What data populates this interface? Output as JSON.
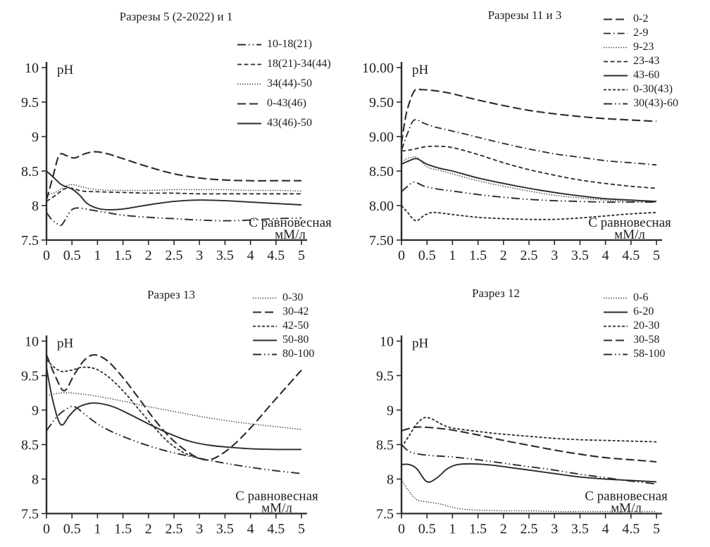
{
  "figure": {
    "background": "#ffffff",
    "ink_color": "#2b2b2b"
  },
  "chart_data": [
    {
      "type": "line",
      "title": "Разрезы 5 (2-2022) и 1",
      "ylabel": "pH",
      "xlabel_lines": [
        "С равновесная",
        "мМ/л"
      ],
      "xlim": [
        0,
        5
      ],
      "ylim": [
        7.5,
        10
      ],
      "xticks": [
        "0",
        "0.5",
        "1",
        "1.5",
        "2",
        "2.5",
        "3",
        "3.5",
        "4",
        "4.5",
        "5"
      ],
      "yticks": [
        "10",
        "9.5",
        "9",
        "8.5",
        "8",
        "7.5"
      ],
      "grid": false,
      "legend_position": "top-right",
      "series": [
        {
          "name": "10-18(21)",
          "style": "dashdotdot",
          "x": [
            0,
            0.1,
            0.2,
            0.3,
            0.45,
            0.55,
            0.7,
            0.85,
            1,
            1.25,
            1.5,
            2,
            2.5,
            3,
            3.5,
            4,
            4.5,
            5
          ],
          "y": [
            7.9,
            7.8,
            7.74,
            7.72,
            7.9,
            7.96,
            7.96,
            7.94,
            7.92,
            7.89,
            7.86,
            7.83,
            7.81,
            7.79,
            7.78,
            7.79,
            7.81,
            7.82
          ]
        },
        {
          "name": "18(21)-34(44)",
          "style": "dash",
          "x": [
            0,
            0.2,
            0.35,
            0.5,
            0.7,
            1,
            1.5,
            2,
            2.5,
            3,
            3.5,
            4,
            4.5,
            5
          ],
          "y": [
            8.06,
            8.16,
            8.24,
            8.25,
            8.21,
            8.2,
            8.19,
            8.18,
            8.18,
            8.17,
            8.17,
            8.17,
            8.17,
            8.17
          ]
        },
        {
          "name": "34(44)-50",
          "style": "dotted",
          "x": [
            0,
            0.2,
            0.4,
            0.55,
            0.75,
            1,
            1.5,
            2,
            2.5,
            3,
            3.5,
            4,
            4.5,
            5
          ],
          "y": [
            8.15,
            8.2,
            8.29,
            8.3,
            8.26,
            8.23,
            8.22,
            8.22,
            8.23,
            8.23,
            8.23,
            8.22,
            8.22,
            8.21
          ]
        },
        {
          "name": "0-43(46)",
          "style": "longdash",
          "x": [
            0,
            0.12,
            0.25,
            0.4,
            0.55,
            0.75,
            0.95,
            1.2,
            1.5,
            2,
            2.5,
            3,
            3.5,
            4,
            4.5,
            5
          ],
          "y": [
            8.08,
            8.4,
            8.73,
            8.72,
            8.69,
            8.75,
            8.78,
            8.75,
            8.68,
            8.56,
            8.46,
            8.4,
            8.37,
            8.36,
            8.36,
            8.36
          ]
        },
        {
          "name": "43(46)-50",
          "style": "solid",
          "x": [
            0,
            0.15,
            0.3,
            0.5,
            0.65,
            0.8,
            1,
            1.2,
            1.5,
            2,
            2.5,
            3,
            3.5,
            4,
            4.5,
            5
          ],
          "y": [
            8.5,
            8.4,
            8.3,
            8.24,
            8.15,
            8.03,
            7.96,
            7.94,
            7.95,
            8.01,
            8.06,
            8.08,
            8.07,
            8.05,
            8.03,
            8.01
          ]
        }
      ]
    },
    {
      "type": "line",
      "title": "Разрезы 11 и 3",
      "ylabel": "pH",
      "xlabel_lines": [
        "С равновесная",
        "мМ/л"
      ],
      "xlim": [
        0,
        5
      ],
      "ylim": [
        7.5,
        10
      ],
      "xticks": [
        "0",
        "0.5",
        "1",
        "1.5",
        "2",
        "2.5",
        "3",
        "3.5",
        "4",
        "4.5",
        "5"
      ],
      "yticks": [
        "10.00",
        "9.50",
        "9.00",
        "8.50",
        "8.00",
        "7.50"
      ],
      "grid": false,
      "legend_position": "top-right",
      "series": [
        {
          "name": "0-2",
          "style": "longdash",
          "x": [
            0,
            0.1,
            0.25,
            0.4,
            0.6,
            0.8,
            1,
            1.5,
            2,
            2.5,
            3,
            3.5,
            4,
            4.5,
            5
          ],
          "y": [
            8.9,
            9.35,
            9.66,
            9.68,
            9.67,
            9.65,
            9.62,
            9.53,
            9.45,
            9.38,
            9.33,
            9.29,
            9.26,
            9.24,
            9.22
          ]
        },
        {
          "name": "2-9",
          "style": "dashdot",
          "x": [
            0,
            0.12,
            0.25,
            0.45,
            0.65,
            1,
            1.5,
            2,
            2.5,
            3,
            3.5,
            4,
            4.5,
            5
          ],
          "y": [
            8.8,
            9.05,
            9.24,
            9.19,
            9.14,
            9.08,
            8.99,
            8.9,
            8.82,
            8.75,
            8.7,
            8.65,
            8.62,
            8.59
          ]
        },
        {
          "name": "9-23",
          "style": "dotted",
          "x": [
            0,
            0.15,
            0.3,
            0.5,
            0.75,
            1,
            1.5,
            2,
            2.5,
            3,
            3.5,
            4,
            4.5,
            5
          ],
          "y": [
            8.64,
            8.69,
            8.7,
            8.56,
            8.51,
            8.46,
            8.36,
            8.28,
            8.21,
            8.15,
            8.11,
            8.08,
            8.06,
            8.05
          ]
        },
        {
          "name": "23-43",
          "style": "dash",
          "x": [
            0,
            0.2,
            0.45,
            0.7,
            1,
            1.5,
            2,
            2.5,
            3,
            3.5,
            4,
            4.5,
            5
          ],
          "y": [
            8.79,
            8.81,
            8.85,
            8.86,
            8.84,
            8.74,
            8.62,
            8.52,
            8.44,
            8.37,
            8.32,
            8.28,
            8.25
          ]
        },
        {
          "name": "43-60",
          "style": "solid",
          "x": [
            0,
            0.15,
            0.3,
            0.5,
            0.75,
            1,
            1.5,
            2,
            2.5,
            3,
            3.5,
            4,
            4.5,
            5
          ],
          "y": [
            8.6,
            8.65,
            8.68,
            8.6,
            8.54,
            8.5,
            8.4,
            8.32,
            8.25,
            8.19,
            8.14,
            8.1,
            8.08,
            8.06
          ]
        },
        {
          "name": "0-30(43)",
          "style": "densedash",
          "x": [
            0,
            0.12,
            0.28,
            0.45,
            0.6,
            0.8,
            1,
            1.5,
            2,
            2.5,
            3,
            3.5,
            4,
            4.5,
            5
          ],
          "y": [
            8.0,
            7.9,
            7.78,
            7.86,
            7.9,
            7.89,
            7.87,
            7.83,
            7.81,
            7.8,
            7.8,
            7.82,
            7.85,
            7.88,
            7.9
          ]
        },
        {
          "name": "30(43)-60",
          "style": "dashdotdot",
          "x": [
            0,
            0.12,
            0.25,
            0.45,
            0.7,
            1,
            1.5,
            2,
            2.5,
            3,
            3.5,
            4,
            4.5,
            5
          ],
          "y": [
            8.2,
            8.28,
            8.34,
            8.28,
            8.24,
            8.21,
            8.16,
            8.12,
            8.09,
            8.07,
            8.06,
            8.05,
            8.05,
            8.05
          ]
        }
      ]
    },
    {
      "type": "line",
      "title": "Разрез 13",
      "ylabel": "pH",
      "xlabel_lines": [
        "С равновесная",
        "мМ/л"
      ],
      "xlim": [
        0,
        5
      ],
      "ylim": [
        7.5,
        10
      ],
      "xticks": [
        "0",
        "0.5",
        "1",
        "1.5",
        "2",
        "2.5",
        "3",
        "3.5",
        "4",
        "4.5",
        "5"
      ],
      "yticks": [
        "10",
        "9.5",
        "9",
        "8.5",
        "8",
        "7.5"
      ],
      "grid": false,
      "legend_position": "top-right",
      "series": [
        {
          "name": "0-30",
          "style": "dotted",
          "x": [
            0,
            0.3,
            0.6,
            1,
            1.5,
            2,
            2.5,
            3,
            3.5,
            4,
            4.5,
            5
          ],
          "y": [
            9.21,
            9.25,
            9.24,
            9.2,
            9.13,
            9.05,
            8.98,
            8.91,
            8.85,
            8.8,
            8.76,
            8.72
          ]
        },
        {
          "name": "30-42",
          "style": "longdash",
          "x": [
            0,
            0.18,
            0.35,
            0.55,
            0.75,
            0.95,
            1.2,
            1.5,
            1.8,
            2.1,
            2.4,
            2.7,
            3.0,
            3.25,
            3.6,
            4,
            4.4,
            4.7,
            5
          ],
          "y": [
            9.8,
            9.48,
            9.28,
            9.52,
            9.73,
            9.8,
            9.71,
            9.47,
            9.18,
            8.88,
            8.62,
            8.43,
            8.3,
            8.29,
            8.45,
            8.74,
            9.08,
            9.33,
            9.58
          ]
        },
        {
          "name": "42-50",
          "style": "densedash",
          "x": [
            0,
            0.15,
            0.3,
            0.5,
            0.7,
            0.95,
            1.2,
            1.5,
            1.8,
            2.1,
            2.4,
            2.7,
            3.0,
            3.15
          ],
          "y": [
            9.73,
            9.62,
            9.56,
            9.58,
            9.62,
            9.6,
            9.49,
            9.28,
            9.02,
            8.76,
            8.53,
            8.38,
            8.3,
            8.28
          ]
        },
        {
          "name": "50-80",
          "style": "solid",
          "x": [
            0,
            0.12,
            0.28,
            0.45,
            0.6,
            0.8,
            1,
            1.3,
            1.6,
            2,
            2.4,
            2.8,
            3.2,
            3.6,
            4,
            4.5,
            5
          ],
          "y": [
            9.62,
            9.15,
            8.79,
            8.92,
            9.03,
            9.09,
            9.1,
            9.05,
            8.95,
            8.8,
            8.66,
            8.55,
            8.49,
            8.46,
            8.44,
            8.43,
            8.43
          ]
        },
        {
          "name": "80-100",
          "style": "dashdotdot",
          "x": [
            0,
            0.2,
            0.4,
            0.55,
            0.75,
            1,
            1.3,
            1.7,
            2.1,
            2.5,
            3,
            3.5,
            4,
            4.5,
            5
          ],
          "y": [
            8.7,
            8.9,
            9.02,
            9.05,
            8.94,
            8.8,
            8.68,
            8.56,
            8.46,
            8.38,
            8.3,
            8.23,
            8.17,
            8.12,
            8.08
          ]
        }
      ]
    },
    {
      "type": "line",
      "title": "Разрез 12",
      "ylabel": "pH",
      "xlabel_lines": [
        "С равновесная",
        "мМ/л"
      ],
      "xlim": [
        0,
        5
      ],
      "ylim": [
        7.5,
        10
      ],
      "xticks": [
        "0",
        "0.5",
        "1",
        "1.5",
        "2",
        "2.5",
        "3",
        "3.5",
        "4",
        "4.5",
        "5"
      ],
      "yticks": [
        "10",
        "9.5",
        "9",
        "8.5",
        "8",
        "7.5"
      ],
      "grid": false,
      "legend_position": "top-right",
      "series": [
        {
          "name": "0-6",
          "style": "dotted",
          "x": [
            0,
            0.12,
            0.3,
            0.5,
            0.75,
            1,
            1.25,
            1.5,
            2,
            2.5,
            3,
            3.5,
            4,
            4.5,
            5
          ],
          "y": [
            7.99,
            7.85,
            7.7,
            7.67,
            7.64,
            7.59,
            7.56,
            7.55,
            7.54,
            7.54,
            7.53,
            7.53,
            7.53,
            7.53,
            7.53
          ]
        },
        {
          "name": "6-20",
          "style": "solid",
          "x": [
            0,
            0.15,
            0.3,
            0.5,
            0.7,
            0.9,
            1.1,
            1.4,
            1.8,
            2.2,
            2.6,
            3,
            3.5,
            4,
            4.5,
            5
          ],
          "y": [
            8.21,
            8.21,
            8.15,
            7.96,
            8.02,
            8.15,
            8.21,
            8.22,
            8.2,
            8.16,
            8.12,
            8.08,
            8.03,
            8.0,
            7.98,
            7.96
          ]
        },
        {
          "name": "20-30",
          "style": "densedash",
          "x": [
            0,
            0.15,
            0.3,
            0.45,
            0.6,
            0.8,
            1,
            1.5,
            2,
            2.5,
            3,
            3.5,
            4,
            4.5,
            5
          ],
          "y": [
            8.46,
            8.63,
            8.8,
            8.89,
            8.87,
            8.79,
            8.74,
            8.69,
            8.65,
            8.62,
            8.59,
            8.57,
            8.56,
            8.55,
            8.54
          ]
        },
        {
          "name": "30-58",
          "style": "longdash",
          "x": [
            0,
            0.25,
            0.5,
            0.8,
            1,
            1.5,
            2,
            2.5,
            3,
            3.5,
            4,
            4.5,
            5
          ],
          "y": [
            8.7,
            8.75,
            8.75,
            8.73,
            8.71,
            8.64,
            8.56,
            8.49,
            8.42,
            8.36,
            8.31,
            8.28,
            8.25
          ]
        },
        {
          "name": "58-100",
          "style": "dashdotdot",
          "x": [
            0,
            0.15,
            0.35,
            0.6,
            1,
            1.5,
            2,
            2.5,
            3,
            3.5,
            4,
            4.5,
            5
          ],
          "y": [
            8.5,
            8.4,
            8.36,
            8.34,
            8.32,
            8.28,
            8.23,
            8.18,
            8.13,
            8.07,
            8.02,
            7.97,
            7.93
          ]
        }
      ]
    }
  ]
}
